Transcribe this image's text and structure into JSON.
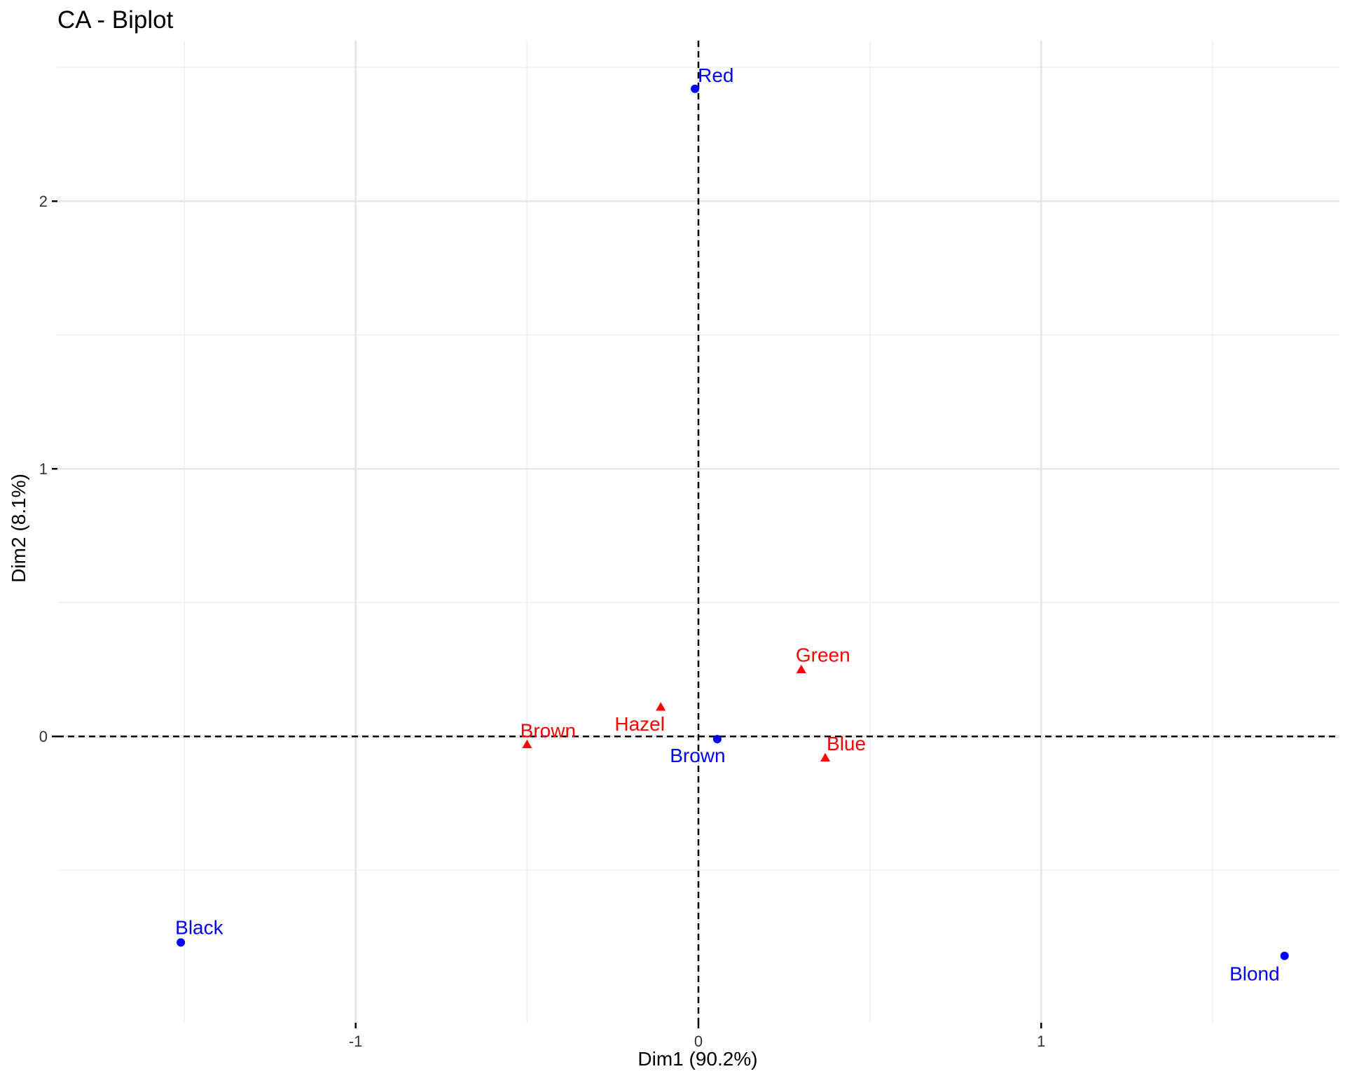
{
  "chart_data": {
    "type": "scatter",
    "title": "CA - Biplot",
    "xlabel": "Dim1 (90.2%)",
    "ylabel": "Dim2 (8.1%)",
    "xlim": [
      -1.87,
      1.87
    ],
    "ylim": [
      -1.07,
      2.6
    ],
    "x_ticks": [
      -1,
      0,
      1
    ],
    "y_ticks": [
      0,
      1,
      2
    ],
    "grid": true,
    "reference_lines": {
      "x": 0,
      "y": 0,
      "style": "dashed"
    },
    "series": [
      {
        "color": "#0000FF",
        "marker": "circle",
        "points": [
          {
            "label": "Black",
            "x": -1.51,
            "y": -0.77
          },
          {
            "label": "Brown",
            "x": 0.055,
            "y": -0.01
          },
          {
            "label": "Red",
            "x": -0.01,
            "y": 2.42
          },
          {
            "label": "Blond",
            "x": 1.71,
            "y": -0.82
          }
        ]
      },
      {
        "color": "#FF0000",
        "marker": "triangle",
        "points": [
          {
            "label": "Brown",
            "x": -0.5,
            "y": -0.03
          },
          {
            "label": "Hazel",
            "x": -0.11,
            "y": 0.11
          },
          {
            "label": "Green",
            "x": 0.3,
            "y": 0.25
          },
          {
            "label": "Blue",
            "x": 0.37,
            "y": -0.08
          }
        ]
      }
    ]
  }
}
